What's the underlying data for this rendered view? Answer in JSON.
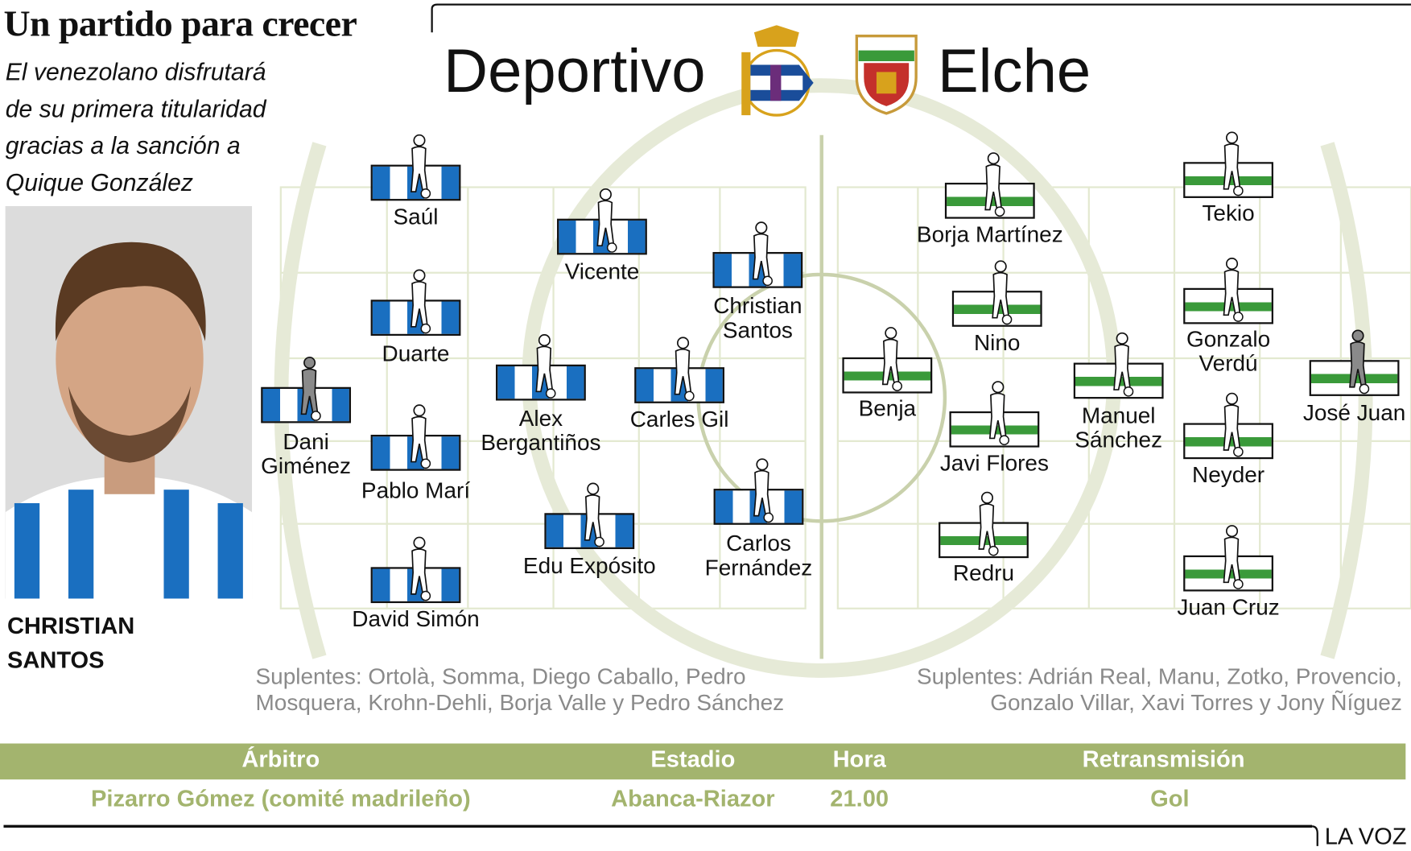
{
  "header": {
    "title": "Un partido para crecer",
    "subtitle_lines": [
      "El venezolano disfrutará",
      "de su primera titularidad",
      "gracias a la sanción a",
      "Quique González"
    ]
  },
  "feature": {
    "caption_lines": [
      "CHRISTIAN",
      "SANTOS"
    ]
  },
  "teams": {
    "home": "Deportivo",
    "away": "Elche",
    "home_crest_icon": "deportivo-crest-icon",
    "away_crest_icon": "elche-crest-icon"
  },
  "colors": {
    "home_kit": "#1a6fc0",
    "away_kit": "#3a9a3a",
    "accent": "#a3b46e",
    "pitch_lines": "#e3e9d0",
    "goalkeeper": "#8a8a8a"
  },
  "home_players": [
    {
      "name": "Dani\nGiménez",
      "gk": true
    },
    {
      "name": "Saúl"
    },
    {
      "name": "Duarte"
    },
    {
      "name": "Pablo Marí"
    },
    {
      "name": "David Simón"
    },
    {
      "name": "Vicente"
    },
    {
      "name": "Alex\nBergantiños"
    },
    {
      "name": "Edu Expósito"
    },
    {
      "name": "Carles Gil"
    },
    {
      "name": "Christian\nSantos"
    },
    {
      "name": "Carlos\nFernández"
    }
  ],
  "away_players": [
    {
      "name": "Benja"
    },
    {
      "name": "Borja Martínez"
    },
    {
      "name": "Nino"
    },
    {
      "name": "Javi Flores"
    },
    {
      "name": "Redru"
    },
    {
      "name": "Manuel\nSánchez"
    },
    {
      "name": "Tekio"
    },
    {
      "name": "Gonzalo\nVerdú"
    },
    {
      "name": "Neyder"
    },
    {
      "name": "Juan Cruz"
    },
    {
      "name": "José Juan",
      "gk": true
    }
  ],
  "subs": {
    "home_lines": [
      "Suplentes: Ortolà, Somma, Diego Caballo, Pedro",
      "Mosquera, Krohn-Dehli, Borja Valle y Pedro Sánchez"
    ],
    "away_lines": [
      "Suplentes: Adrián Real, Manu, Zotko, Provencio,",
      "Gonzalo Villar, Xavi Torres y Jony Ñíguez"
    ]
  },
  "info": {
    "headers": [
      "Árbitro",
      "Estadio",
      "Hora",
      "Retransmisión"
    ],
    "values": [
      "Pizarro Gómez (comité madrileño)",
      "Abanca-Riazor",
      "21.00",
      "Gol"
    ]
  },
  "footer": {
    "brand": "LA VOZ"
  }
}
